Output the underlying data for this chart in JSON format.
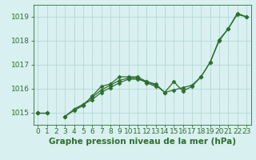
{
  "xlabel": "Graphe pression niveau de la mer (hPa)",
  "x": [
    0,
    1,
    2,
    3,
    4,
    5,
    6,
    7,
    8,
    9,
    10,
    11,
    12,
    13,
    14,
    15,
    16,
    17,
    18,
    19,
    20,
    21,
    22,
    23
  ],
  "series1": [
    1015.0,
    1015.0,
    null,
    1014.85,
    1015.1,
    1015.3,
    1015.7,
    1016.1,
    1016.2,
    1016.5,
    1016.5,
    1016.5,
    1016.3,
    1016.15,
    1015.85,
    1015.95,
    1016.05,
    1016.15,
    1016.5,
    1017.1,
    1018.05,
    1018.5,
    1019.1,
    1019.0
  ],
  "series2": [
    1015.0,
    1015.0,
    null,
    1014.85,
    1015.15,
    1015.35,
    1015.65,
    1015.95,
    1016.15,
    1016.35,
    1016.45,
    1016.45,
    1016.25,
    1016.1,
    null,
    null,
    null,
    null,
    null,
    null,
    null,
    null,
    null,
    null
  ],
  "series3": [
    1015.0,
    null,
    null,
    null,
    1015.15,
    1015.35,
    1015.55,
    1015.85,
    1016.05,
    1016.25,
    1016.4,
    1016.4,
    1016.3,
    1016.2,
    1015.85,
    1016.3,
    1015.9,
    1016.1,
    1016.5,
    1017.1,
    1018.0,
    1018.5,
    1019.15,
    1019.0
  ],
  "ylim": [
    1014.5,
    1019.5
  ],
  "yticks": [
    1015,
    1016,
    1017,
    1018,
    1019
  ],
  "xticks": [
    0,
    1,
    2,
    3,
    4,
    5,
    6,
    7,
    8,
    9,
    10,
    11,
    12,
    13,
    14,
    15,
    16,
    17,
    18,
    19,
    20,
    21,
    22,
    23
  ],
  "line_color": "#2d6e2d",
  "bg_color": "#d8f0f0",
  "grid_color": "#b0d4d4",
  "label_color": "#2d6e2d",
  "tick_color": "#2d6e2d",
  "marker": "D",
  "markersize": 2.5,
  "linewidth": 0.9,
  "xlabel_fontsize": 7.5,
  "tick_fontsize": 6.5
}
